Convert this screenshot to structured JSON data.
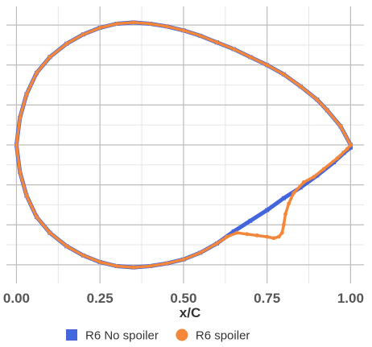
{
  "chart_data": {
    "type": "scatter",
    "title": "",
    "xlabel": "x/C",
    "ylabel": "",
    "xlim": [
      -0.03,
      1.04
    ],
    "ylim": [
      -0.52,
      0.52
    ],
    "x_ticks": [
      0.0,
      0.25,
      0.5,
      0.75,
      1.0
    ],
    "x_tick_labels": [
      "0.00",
      "0.25",
      "0.50",
      "0.75",
      "1.00"
    ],
    "y_ticks": [
      -0.45,
      -0.3,
      -0.15,
      0.0,
      0.15,
      0.3,
      0.45
    ],
    "y_tick_labels": [],
    "grid": true,
    "legend_position": "bottom",
    "series": [
      {
        "name": "R6 No spoiler",
        "color": "#4466dd",
        "marker": "square",
        "x": [
          1.0,
          0.97,
          0.93,
          0.9,
          0.85,
          0.8,
          0.75,
          0.7,
          0.65,
          0.6,
          0.55,
          0.5,
          0.45,
          0.4,
          0.35,
          0.3,
          0.25,
          0.2,
          0.15,
          0.1,
          0.06,
          0.03,
          0.01,
          0.0,
          0.01,
          0.03,
          0.06,
          0.1,
          0.15,
          0.2,
          0.25,
          0.3,
          0.35,
          0.4,
          0.45,
          0.5,
          0.55,
          0.6,
          0.65,
          0.7,
          0.75,
          0.8,
          0.85,
          0.9,
          0.95,
          0.98,
          1.0
        ],
        "y": [
          0.0,
          0.07,
          0.13,
          0.17,
          0.22,
          0.265,
          0.3,
          0.33,
          0.36,
          0.385,
          0.41,
          0.43,
          0.445,
          0.455,
          0.46,
          0.455,
          0.44,
          0.415,
          0.38,
          0.33,
          0.27,
          0.19,
          0.1,
          0.0,
          -0.1,
          -0.19,
          -0.27,
          -0.33,
          -0.38,
          -0.415,
          -0.44,
          -0.455,
          -0.46,
          -0.455,
          -0.445,
          -0.43,
          -0.405,
          -0.37,
          -0.325,
          -0.285,
          -0.245,
          -0.2,
          -0.16,
          -0.115,
          -0.065,
          -0.03,
          -0.01
        ]
      },
      {
        "name": "R6 spoiler",
        "color": "#f5873a",
        "marker": "circle",
        "x": [
          1.0,
          0.97,
          0.93,
          0.9,
          0.85,
          0.8,
          0.75,
          0.7,
          0.65,
          0.6,
          0.55,
          0.5,
          0.45,
          0.4,
          0.35,
          0.3,
          0.25,
          0.2,
          0.15,
          0.1,
          0.06,
          0.03,
          0.01,
          0.0,
          0.01,
          0.03,
          0.06,
          0.1,
          0.15,
          0.2,
          0.25,
          0.3,
          0.35,
          0.4,
          0.45,
          0.5,
          0.55,
          0.6,
          0.63,
          0.66,
          0.69,
          0.72,
          0.75,
          0.77,
          0.785,
          0.795,
          0.8,
          0.805,
          0.815,
          0.83,
          0.86,
          0.89,
          0.92,
          0.96,
          0.99,
          1.0
        ],
        "y": [
          0.0,
          0.07,
          0.13,
          0.17,
          0.22,
          0.265,
          0.3,
          0.33,
          0.36,
          0.385,
          0.41,
          0.43,
          0.445,
          0.455,
          0.46,
          0.455,
          0.44,
          0.415,
          0.38,
          0.33,
          0.27,
          0.19,
          0.1,
          0.0,
          -0.1,
          -0.19,
          -0.27,
          -0.33,
          -0.38,
          -0.415,
          -0.44,
          -0.455,
          -0.46,
          -0.455,
          -0.445,
          -0.43,
          -0.405,
          -0.37,
          -0.345,
          -0.33,
          -0.335,
          -0.34,
          -0.345,
          -0.35,
          -0.345,
          -0.33,
          -0.3,
          -0.26,
          -0.22,
          -0.18,
          -0.14,
          -0.12,
          -0.09,
          -0.05,
          -0.015,
          0.0
        ]
      }
    ]
  }
}
